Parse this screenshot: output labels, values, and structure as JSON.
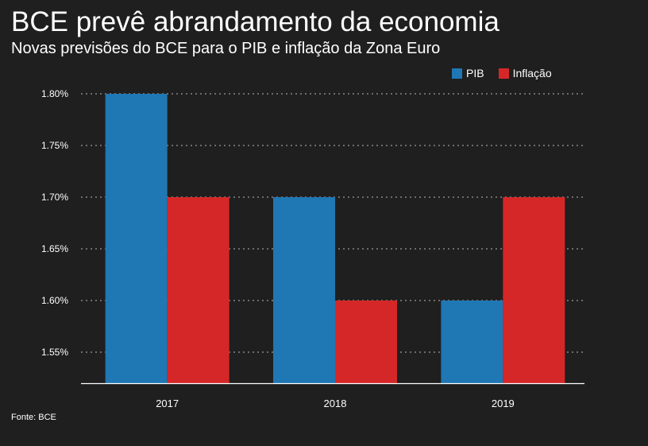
{
  "header": {
    "title": "BCE prevê abrandamento da economia",
    "subtitle": "Novas previsões do BCE para o PIB e inflação da Zona Euro"
  },
  "source": "Fonte: BCE",
  "chart_data": {
    "type": "bar",
    "title": "BCE prevê abrandamento da economia",
    "subtitle": "Novas previsões do BCE para o PIB e inflação da Zona Euro",
    "xlabel": "",
    "ylabel": "",
    "categories": [
      "2017",
      "2018",
      "2019"
    ],
    "series": [
      {
        "name": "PIB",
        "values": [
          1.8,
          1.7,
          1.6
        ],
        "color": "#1f77b4"
      },
      {
        "name": "Inflação",
        "values": [
          1.7,
          1.6,
          1.7
        ],
        "color": "#d62728"
      }
    ],
    "yticks": [
      1.55,
      1.6,
      1.65,
      1.7,
      1.75,
      1.8
    ],
    "ytick_labels": [
      "1.55%",
      "1.60%",
      "1.65%",
      "1.70%",
      "1.75%",
      "1.80%"
    ],
    "ylim": [
      1.52,
      1.8
    ],
    "grid": true,
    "legend_position": "top-right"
  }
}
